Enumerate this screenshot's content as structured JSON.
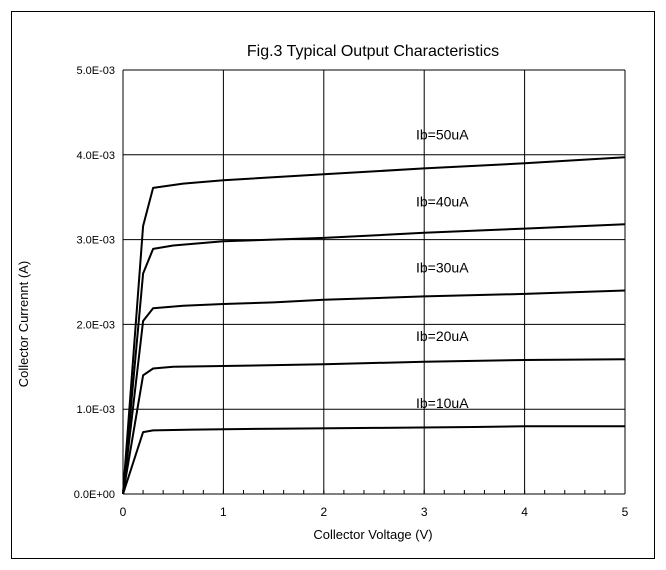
{
  "chart_data": {
    "type": "line",
    "title": "Fig.3 Typical Output Characteristics",
    "xlabel": "Collector Voltage (V)",
    "ylabel": "Collector Currennt (A)",
    "xlim": [
      0,
      5
    ],
    "ylim": [
      0,
      0.005
    ],
    "x_ticks": [
      "0",
      "1",
      "2",
      "3",
      "4",
      "5"
    ],
    "y_ticks": [
      "0.0E+00",
      "1.0E-03",
      "2.0E-03",
      "3.0E-03",
      "4.0E-03",
      "5.0E-03"
    ],
    "grid": true,
    "series": [
      {
        "name": "Ib=10uA",
        "points": [
          [
            0,
            0
          ],
          [
            0.2,
            0.00073
          ],
          [
            0.3,
            0.00075
          ],
          [
            0.7,
            0.00076
          ],
          [
            1.5,
            0.00077
          ],
          [
            2.5,
            0.00078
          ],
          [
            3.5,
            0.00079
          ],
          [
            4,
            0.0008
          ],
          [
            5,
            0.0008
          ]
        ]
      },
      {
        "name": "Ib=20uA",
        "points": [
          [
            0,
            0
          ],
          [
            0.2,
            0.0014
          ],
          [
            0.3,
            0.00148
          ],
          [
            0.5,
            0.0015
          ],
          [
            1,
            0.00151
          ],
          [
            2,
            0.00153
          ],
          [
            3,
            0.00156
          ],
          [
            4,
            0.00158
          ],
          [
            5,
            0.00159
          ]
        ]
      },
      {
        "name": "Ib=30uA",
        "points": [
          [
            0,
            0
          ],
          [
            0.2,
            0.00204
          ],
          [
            0.3,
            0.00219
          ],
          [
            0.6,
            0.00222
          ],
          [
            1,
            0.00224
          ],
          [
            1.5,
            0.00226
          ],
          [
            2,
            0.00229
          ],
          [
            3,
            0.00233
          ],
          [
            4,
            0.00236
          ],
          [
            5,
            0.0024
          ]
        ]
      },
      {
        "name": "Ib=40uA",
        "points": [
          [
            0,
            0
          ],
          [
            0.2,
            0.0026
          ],
          [
            0.3,
            0.00289
          ],
          [
            0.5,
            0.00293
          ],
          [
            1,
            0.00298
          ],
          [
            2,
            0.00302
          ],
          [
            3,
            0.00308
          ],
          [
            4,
            0.00313
          ],
          [
            5,
            0.00318
          ]
        ]
      },
      {
        "name": "Ib=50uA",
        "points": [
          [
            0,
            0
          ],
          [
            0.2,
            0.00316
          ],
          [
            0.3,
            0.00361
          ],
          [
            0.6,
            0.00366
          ],
          [
            1,
            0.0037
          ],
          [
            2,
            0.00377
          ],
          [
            3,
            0.00384
          ],
          [
            4,
            0.0039
          ],
          [
            5,
            0.00397
          ]
        ]
      }
    ]
  }
}
